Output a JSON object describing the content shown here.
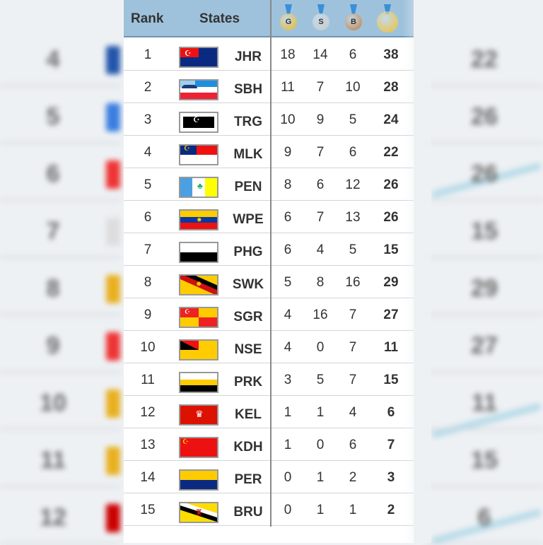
{
  "background": {
    "left_ranks": [
      "4",
      "5",
      "6",
      "7",
      "8",
      "9",
      "10",
      "11",
      "12"
    ],
    "right_totals": [
      "22",
      "26",
      "26",
      "15",
      "29",
      "27",
      "11",
      "15",
      "6"
    ]
  },
  "header": {
    "rank": "Rank",
    "states": "States",
    "medals": [
      {
        "icon": "gold-medal-icon",
        "letter": "G",
        "color": "#e8b620"
      },
      {
        "icon": "silver-medal-icon",
        "letter": "S",
        "color": "#c9c9c9"
      },
      {
        "icon": "bronze-medal-icon",
        "letter": "B",
        "color": "#c07a3a"
      },
      {
        "icon": "total-medals-icon",
        "letter": "",
        "color": "#f0c030"
      }
    ]
  },
  "rows": [
    {
      "rank": "1",
      "code": "JHR",
      "gold": "18",
      "silver": "14",
      "bronze": "6",
      "total": "38"
    },
    {
      "rank": "2",
      "code": "SBH",
      "gold": "11",
      "silver": "7",
      "bronze": "10",
      "total": "28"
    },
    {
      "rank": "3",
      "code": "TRG",
      "gold": "10",
      "silver": "9",
      "bronze": "5",
      "total": "24"
    },
    {
      "rank": "4",
      "code": "MLK",
      "gold": "9",
      "silver": "7",
      "bronze": "6",
      "total": "22"
    },
    {
      "rank": "5",
      "code": "PEN",
      "gold": "8",
      "silver": "6",
      "bronze": "12",
      "total": "26"
    },
    {
      "rank": "6",
      "code": "WPE",
      "gold": "6",
      "silver": "7",
      "bronze": "13",
      "total": "26"
    },
    {
      "rank": "7",
      "code": "PHG",
      "gold": "6",
      "silver": "4",
      "bronze": "5",
      "total": "15"
    },
    {
      "rank": "8",
      "code": "SWK",
      "gold": "5",
      "silver": "8",
      "bronze": "16",
      "total": "29"
    },
    {
      "rank": "9",
      "code": "SGR",
      "gold": "4",
      "silver": "16",
      "bronze": "7",
      "total": "27"
    },
    {
      "rank": "10",
      "code": "NSE",
      "gold": "4",
      "silver": "0",
      "bronze": "7",
      "total": "11"
    },
    {
      "rank": "11",
      "code": "PRK",
      "gold": "3",
      "silver": "5",
      "bronze": "7",
      "total": "15"
    },
    {
      "rank": "12",
      "code": "KEL",
      "gold": "1",
      "silver": "1",
      "bronze": "4",
      "total": "6"
    },
    {
      "rank": "13",
      "code": "KDH",
      "gold": "1",
      "silver": "0",
      "bronze": "6",
      "total": "7"
    },
    {
      "rank": "14",
      "code": "PER",
      "gold": "0",
      "silver": "1",
      "bronze": "2",
      "total": "3"
    },
    {
      "rank": "15",
      "code": "BRU",
      "gold": "0",
      "silver": "1",
      "bronze": "1",
      "total": "2"
    }
  ]
}
